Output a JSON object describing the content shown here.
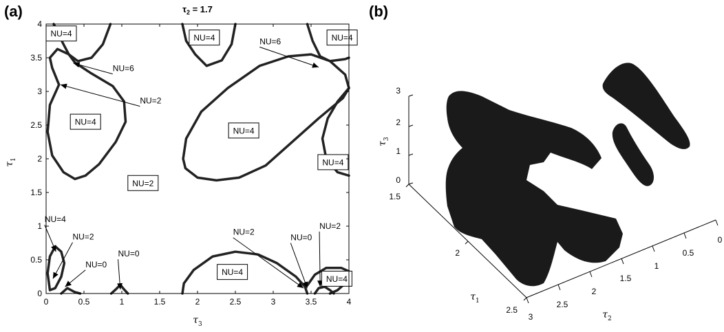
{
  "panels": {
    "a": {
      "label": "(a)"
    },
    "b": {
      "label": "(b)"
    }
  },
  "chart_data": [
    {
      "type": "scatter",
      "title_prefix": "τ",
      "title_sub": "2",
      "title_suffix": " = 1.7",
      "xlabel": "τ",
      "xlabel_sub": "3",
      "ylabel": "τ",
      "ylabel_sub": "1",
      "xlim": [
        0,
        4
      ],
      "ylim": [
        0,
        4
      ],
      "xticks": [
        0,
        0.5,
        1,
        1.5,
        2,
        2.5,
        3,
        3.5,
        4
      ],
      "yticks": [
        0,
        0.5,
        1,
        1.5,
        2,
        2.5,
        3,
        3.5,
        4
      ],
      "xtick_labels": [
        "0",
        "0.5",
        "1",
        "1.5",
        "2",
        "2.5",
        "3",
        "3.5",
        "4"
      ],
      "ytick_labels": [
        "0",
        "0.5",
        "1",
        "1.5",
        "2",
        "2.5",
        "3",
        "3.5",
        "4"
      ],
      "grid": false,
      "region_labels": [
        {
          "text": "NU=4",
          "x": 0.2,
          "y": 3.86,
          "boxed": true
        },
        {
          "text": "NU=4",
          "x": 2.09,
          "y": 3.8,
          "boxed": true
        },
        {
          "text": "NU=4",
          "x": 3.91,
          "y": 3.8,
          "boxed": true
        },
        {
          "text": "NU=4",
          "x": 0.52,
          "y": 2.55,
          "boxed": true
        },
        {
          "text": "NU=4",
          "x": 2.61,
          "y": 2.42,
          "boxed": true
        },
        {
          "text": "NU=4",
          "x": 3.79,
          "y": 1.95,
          "boxed": true
        },
        {
          "text": "NU=2",
          "x": 1.28,
          "y": 1.64,
          "boxed": true
        },
        {
          "text": "NU=4",
          "x": 2.46,
          "y": 0.32,
          "boxed": true
        },
        {
          "text": "NU=4",
          "x": 3.84,
          "y": 0.22,
          "boxed": true
        }
      ],
      "annotations": [
        {
          "text": "NU=6",
          "text_x": 0.88,
          "text_y": 3.3,
          "point_x": 0.36,
          "point_y": 3.42
        },
        {
          "text": "NU=2",
          "text_x": 1.24,
          "text_y": 2.82,
          "point_x": 0.19,
          "point_y": 3.1
        },
        {
          "text": "NU=6",
          "text_x": 2.82,
          "text_y": 3.7,
          "point_x": 3.6,
          "point_y": 3.36
        },
        {
          "text": "NU=4",
          "text_x": -0.02,
          "text_y": 1.06,
          "point_x": 0.13,
          "point_y": 0.62
        },
        {
          "text": "NU=2",
          "text_x": 0.35,
          "text_y": 0.8,
          "point_x": 0.09,
          "point_y": 0.22
        },
        {
          "text": "NU=0",
          "text_x": 0.52,
          "text_y": 0.39,
          "point_x": 0.25,
          "point_y": 0.1
        },
        {
          "text": "NU=0",
          "text_x": 0.95,
          "text_y": 0.55,
          "point_x": 0.98,
          "point_y": 0.06
        },
        {
          "text": "NU=2",
          "text_x": 2.47,
          "text_y": 0.87,
          "point_x": 3.4,
          "point_y": 0.08
        },
        {
          "text": "NU=0",
          "text_x": 3.23,
          "text_y": 0.79,
          "point_x": 3.45,
          "point_y": 0.08
        },
        {
          "text": "NU=2",
          "text_x": 3.61,
          "text_y": 0.96,
          "point_x": 3.62,
          "point_y": 0.1
        }
      ],
      "curves": [
        {
          "name": "top-left-loop",
          "points": [
            [
              0.3,
              3.55
            ],
            [
              0.15,
              3.63
            ],
            [
              0.05,
              3.5
            ],
            [
              0.08,
              3.35
            ],
            [
              0.17,
              3.1
            ],
            [
              0.05,
              2.8
            ],
            [
              0.02,
              2.4
            ],
            [
              0.08,
              2.05
            ],
            [
              0.23,
              1.8
            ],
            [
              0.38,
              1.7
            ],
            [
              0.52,
              1.75
            ],
            [
              0.7,
              1.92
            ],
            [
              0.92,
              2.25
            ],
            [
              1.05,
              2.55
            ],
            [
              1.03,
              2.85
            ],
            [
              0.88,
              3.08
            ],
            [
              0.58,
              3.28
            ],
            [
              0.38,
              3.43
            ],
            [
              0.3,
              3.55
            ]
          ]
        },
        {
          "name": "top-left-arc",
          "points": [
            [
              0.1,
              4.0
            ],
            [
              0.15,
              3.9
            ],
            [
              0.22,
              3.72
            ],
            [
              0.3,
              3.55
            ],
            [
              0.42,
              3.45
            ],
            [
              0.6,
              3.5
            ],
            [
              0.75,
              3.7
            ],
            [
              0.85,
              4.0
            ]
          ]
        },
        {
          "name": "top-middle-arc",
          "points": [
            [
              1.8,
              4.0
            ],
            [
              1.85,
              3.75
            ],
            [
              1.97,
              3.55
            ],
            [
              2.12,
              3.38
            ],
            [
              2.32,
              3.46
            ],
            [
              2.45,
              3.7
            ],
            [
              2.5,
              4.0
            ]
          ]
        },
        {
          "name": "center-loop",
          "points": [
            [
              1.81,
              2.0
            ],
            [
              1.85,
              2.3
            ],
            [
              2.05,
              2.7
            ],
            [
              2.4,
              3.05
            ],
            [
              2.82,
              3.38
            ],
            [
              3.2,
              3.52
            ],
            [
              3.5,
              3.55
            ],
            [
              3.75,
              3.45
            ],
            [
              3.95,
              3.25
            ],
            [
              4.0,
              3.05
            ],
            [
              3.92,
              2.9
            ],
            [
              3.6,
              2.6
            ],
            [
              3.2,
              2.2
            ],
            [
              2.9,
              1.9
            ],
            [
              2.55,
              1.72
            ],
            [
              2.25,
              1.68
            ],
            [
              2.0,
              1.72
            ],
            [
              1.84,
              1.86
            ],
            [
              1.81,
              2.0
            ]
          ]
        },
        {
          "name": "right-arc",
          "points": [
            [
              4.0,
              3.05
            ],
            [
              3.85,
              2.85
            ],
            [
              3.72,
              2.6
            ],
            [
              3.65,
              2.3
            ],
            [
              3.7,
              2.0
            ],
            [
              3.85,
              1.8
            ],
            [
              4.0,
              1.75
            ]
          ]
        },
        {
          "name": "top-right-arc",
          "points": [
            [
              3.45,
              4.0
            ],
            [
              3.52,
              3.75
            ],
            [
              3.62,
              3.52
            ],
            [
              3.75,
              3.45
            ],
            [
              3.95,
              3.48
            ],
            [
              4.0,
              3.5
            ]
          ]
        },
        {
          "name": "bottom-left-small-loop",
          "points": [
            [
              0.05,
              0.05
            ],
            [
              0.02,
              0.3
            ],
            [
              0.05,
              0.55
            ],
            [
              0.12,
              0.7
            ],
            [
              0.2,
              0.62
            ],
            [
              0.24,
              0.45
            ],
            [
              0.2,
              0.25
            ],
            [
              0.12,
              0.08
            ],
            [
              0.05,
              0.05
            ]
          ]
        },
        {
          "name": "bottom-left-spike",
          "points": [
            [
              0.2,
              0.0
            ],
            [
              0.28,
              0.08
            ],
            [
              0.38,
              0.02
            ],
            [
              0.45,
              0.0
            ]
          ]
        },
        {
          "name": "near-one-spike",
          "points": [
            [
              0.86,
              0.0
            ],
            [
              0.92,
              0.06
            ],
            [
              0.98,
              0.13
            ],
            [
              1.03,
              0.06
            ],
            [
              1.08,
              0.0
            ]
          ]
        },
        {
          "name": "bottom-middle-arc",
          "points": [
            [
              1.8,
              0.0
            ],
            [
              1.82,
              0.15
            ],
            [
              1.95,
              0.35
            ],
            [
              2.2,
              0.55
            ],
            [
              2.5,
              0.62
            ],
            [
              2.8,
              0.58
            ],
            [
              3.05,
              0.45
            ],
            [
              3.3,
              0.25
            ],
            [
              3.42,
              0.1
            ],
            [
              3.45,
              0.0
            ]
          ]
        },
        {
          "name": "bottom-right-loop",
          "points": [
            [
              3.45,
              0.12
            ],
            [
              3.55,
              0.28
            ],
            [
              3.7,
              0.38
            ],
            [
              3.9,
              0.38
            ],
            [
              4.0,
              0.33
            ],
            [
              3.95,
              0.15
            ],
            [
              3.85,
              0.05
            ],
            [
              3.75,
              0.0
            ]
          ]
        },
        {
          "name": "bottom-right-curl",
          "points": [
            [
              3.55,
              0.0
            ],
            [
              3.6,
              0.08
            ],
            [
              3.68,
              0.1
            ],
            [
              3.75,
              0.05
            ],
            [
              3.8,
              0.0
            ]
          ]
        }
      ]
    },
    {
      "type": "scatter3d",
      "x_axis_label": "τ",
      "x_axis_sub": "1",
      "y_axis_label": "τ",
      "y_axis_sub": "2",
      "z_axis_label": "τ",
      "z_axis_sub": "3",
      "x_ticks": [
        "1.5",
        "2",
        "2.5"
      ],
      "y_ticks": [
        "0",
        "0.5",
        "1",
        "1.5",
        "2",
        "2.5",
        "3"
      ],
      "z_ticks": [
        "0",
        "1",
        "2",
        "3"
      ],
      "grid": false,
      "marker_color": "#1a1a1a"
    }
  ]
}
